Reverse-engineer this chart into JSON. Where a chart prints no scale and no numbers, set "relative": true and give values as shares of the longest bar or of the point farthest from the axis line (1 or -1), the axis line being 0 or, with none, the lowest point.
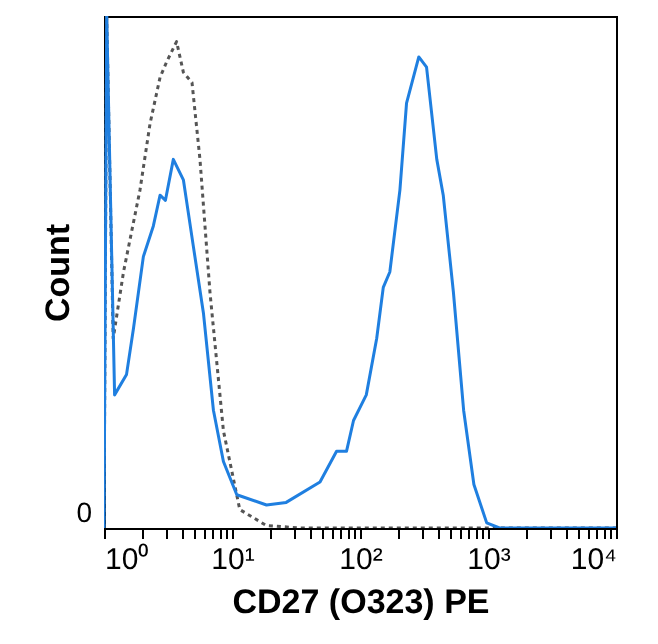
{
  "chart_data": {
    "type": "line",
    "relative": true,
    "xlabel": "CD27 (O323) PE",
    "ylabel": "Count",
    "log": "x",
    "xlim": [
      1,
      10000
    ],
    "xticks": [
      {
        "value": 1,
        "label": "10⁰"
      },
      {
        "value": 2,
        "label": null
      },
      {
        "value": 3,
        "label": null
      },
      {
        "value": 4,
        "label": null
      },
      {
        "value": 5,
        "label": null
      },
      {
        "value": 6,
        "label": null
      },
      {
        "value": 7,
        "label": null
      },
      {
        "value": 8,
        "label": null
      },
      {
        "value": 9,
        "label": null
      },
      {
        "value": 10,
        "label": "10¹"
      },
      {
        "value": 20,
        "label": null
      },
      {
        "value": 30,
        "label": null
      },
      {
        "value": 40,
        "label": null
      },
      {
        "value": 50,
        "label": null
      },
      {
        "value": 60,
        "label": null
      },
      {
        "value": 70,
        "label": null
      },
      {
        "value": 80,
        "label": null
      },
      {
        "value": 90,
        "label": null
      },
      {
        "value": 100,
        "label": "10²"
      },
      {
        "value": 200,
        "label": null
      },
      {
        "value": 300,
        "label": null
      },
      {
        "value": 400,
        "label": null
      },
      {
        "value": 500,
        "label": null
      },
      {
        "value": 600,
        "label": null
      },
      {
        "value": 700,
        "label": null
      },
      {
        "value": 800,
        "label": null
      },
      {
        "value": 900,
        "label": null
      },
      {
        "value": 1000,
        "label": "10³"
      },
      {
        "value": 2000,
        "label": null
      },
      {
        "value": 3000,
        "label": null
      },
      {
        "value": 4000,
        "label": null
      },
      {
        "value": 5000,
        "label": null
      },
      {
        "value": 6000,
        "label": null
      },
      {
        "value": 7000,
        "label": null
      },
      {
        "value": 8000,
        "label": null
      },
      {
        "value": 9000,
        "label": null
      },
      {
        "value": 10000,
        "label": "10⁴"
      }
    ],
    "annotations": [
      "0"
    ],
    "series": [
      {
        "color": "#555555",
        "line_style": "dotted",
        "x": [
          1,
          1.05,
          1.18,
          1.42,
          1.91,
          2.29,
          2.74,
          3.08,
          3.69,
          4.17,
          4.87,
          5.62,
          6.73,
          8.57,
          11.5,
          18.5,
          34,
          10000
        ],
        "values": [
          0,
          1,
          0.37,
          0.5,
          0.66,
          0.79,
          0.88,
          0.91,
          0.95,
          0.89,
          0.87,
          0.72,
          0.46,
          0.19,
          0.036,
          0.005,
          0,
          0
        ]
      },
      {
        "color": "#1f7fe0",
        "line_style": "solid",
        "x": [
          1,
          1.05,
          1.21,
          1.5,
          1.7,
          2.03,
          2.43,
          2.74,
          3.02,
          3.48,
          4.17,
          4.99,
          5.98,
          7.16,
          8.57,
          10.9,
          18.6,
          26.5,
          48.7,
          65.6,
          78.5,
          89,
          112,
          135,
          152,
          171,
          205,
          231,
          288,
          331,
          398,
          447,
          537,
          645,
          776,
          977,
          1230,
          10000
        ],
        "values": [
          0,
          1,
          0.26,
          0.3,
          0.39,
          0.53,
          0.59,
          0.65,
          0.64,
          0.72,
          0.68,
          0.55,
          0.42,
          0.23,
          0.13,
          0.065,
          0.045,
          0.05,
          0.09,
          0.15,
          0.15,
          0.21,
          0.26,
          0.37,
          0.47,
          0.5,
          0.66,
          0.83,
          0.92,
          0.9,
          0.72,
          0.65,
          0.46,
          0.23,
          0.085,
          0.01,
          0,
          0
        ]
      }
    ]
  }
}
